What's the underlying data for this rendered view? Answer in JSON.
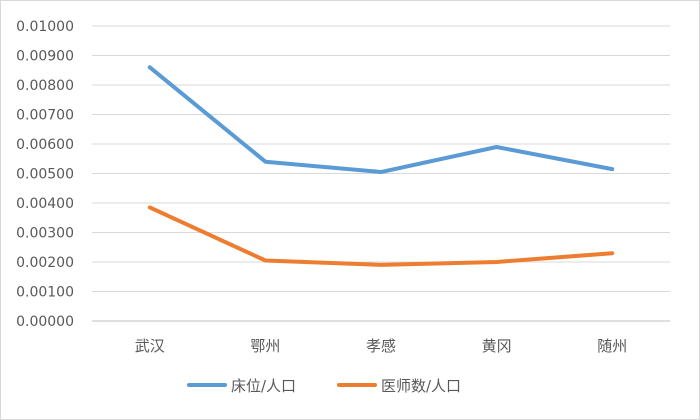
{
  "chart_data": {
    "type": "line",
    "categories": [
      "武汉",
      "鄂州",
      "孝感",
      "黄冈",
      "随州"
    ],
    "series": [
      {
        "name": "床位/人口",
        "color": "#5b9bd5",
        "values": [
          0.0086,
          0.0054,
          0.00505,
          0.0059,
          0.00515
        ]
      },
      {
        "name": "医师数/人口",
        "color": "#ed7d31",
        "values": [
          0.00385,
          0.00205,
          0.0019,
          0.002,
          0.0023
        ]
      }
    ],
    "ylim": [
      0,
      0.01
    ],
    "ytick_step": 0.001,
    "ytick_decimals": 5,
    "grid": true,
    "legend_position": "bottom"
  }
}
